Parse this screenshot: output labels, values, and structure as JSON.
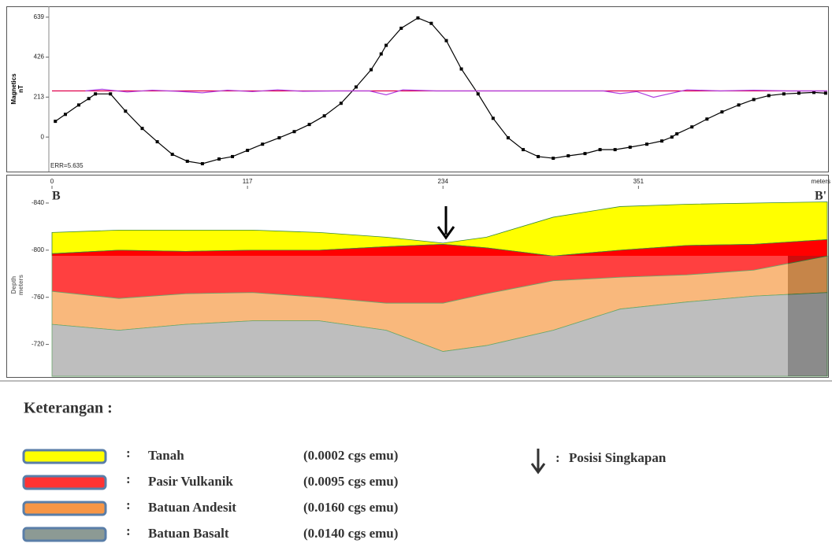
{
  "chart_data": [
    {
      "type": "line",
      "y_label": "Magnetics",
      "y_unit": "nT",
      "x_unit": "meters",
      "annotation": "ERR=5.635",
      "xlim": [
        0,
        464
      ],
      "xticks": [
        0,
        117,
        234,
        351
      ],
      "ylim": [
        -184,
        697
      ],
      "yticks": [
        639,
        426,
        213,
        0
      ],
      "series": [
        {
          "color": "#000000",
          "markers": true,
          "x": [
            2,
            8,
            16,
            22,
            26,
            35,
            44,
            54,
            63,
            72,
            81,
            90,
            100,
            108,
            117,
            126,
            136,
            145,
            154,
            163,
            173,
            182,
            191,
            197,
            200,
            209,
            219,
            227,
            236,
            245,
            255,
            264,
            273,
            282,
            291,
            300,
            309,
            319,
            328,
            337,
            346,
            356,
            365,
            371,
            374,
            383,
            392,
            401,
            411,
            420,
            429,
            438,
            447,
            456,
            463
          ],
          "values": [
            84,
            121,
            171,
            205,
            230,
            230,
            138,
            46,
            -25,
            -92,
            -129,
            -142,
            -117,
            -104,
            -71,
            -38,
            -4,
            29,
            67,
            113,
            180,
            267,
            359,
            443,
            489,
            580,
            635,
            606,
            514,
            363,
            230,
            100,
            -4,
            -67,
            -104,
            -113,
            -100,
            -88,
            -67,
            -67,
            -54,
            -38,
            -21,
            0,
            17,
            54,
            96,
            134,
            171,
            200,
            221,
            230,
            234,
            238,
            234
          ]
        },
        {
          "color": "#e0004c",
          "markers": false,
          "x": [
            0,
            464
          ],
          "values": [
            246,
            246
          ]
        },
        {
          "color": "#b040e0",
          "markers": false,
          "x": [
            20,
            30,
            45,
            60,
            75,
            90,
            105,
            120,
            135,
            150,
            170,
            190,
            200,
            210,
            230,
            260,
            300,
            330,
            340,
            350,
            360,
            380,
            400,
            420,
            440,
            464
          ],
          "values": [
            246,
            255,
            240,
            250,
            244,
            236,
            250,
            242,
            252,
            244,
            246,
            246,
            225,
            252,
            246,
            246,
            246,
            246,
            232,
            242,
            212,
            252,
            246,
            250,
            246,
            246
          ]
        }
      ]
    },
    {
      "type": "area",
      "y_label": "Depth",
      "y_unit": "meters",
      "y_inverted": true,
      "annotations": [
        "B",
        "B'"
      ],
      "xlim": [
        0,
        464
      ],
      "ylim": [
        -850,
        -693
      ],
      "yticks": [
        -840,
        -800,
        -760,
        -720
      ],
      "x": [
        0,
        40,
        80,
        120,
        160,
        200,
        234,
        260,
        300,
        340,
        380,
        420,
        464
      ],
      "series": [
        {
          "color": "#ffff00",
          "values": [
            -815,
            -817,
            -817,
            -817,
            -815,
            -811,
            -806,
            -811,
            -828,
            -837,
            -839,
            -840,
            -841
          ]
        },
        {
          "color": "#ff0000",
          "values": [
            -797,
            -800,
            -799,
            -800,
            -800,
            -803,
            -805,
            -802,
            -795,
            -800,
            -804,
            -805,
            -809
          ]
        },
        {
          "color": "#f7a050",
          "values": [
            -765,
            -759,
            -763,
            -764,
            -760,
            -755,
            -755,
            -763,
            -774,
            -777,
            -779,
            -783,
            -795
          ]
        },
        {
          "color": "#a8a8a8",
          "values": [
            -737,
            -732,
            -737,
            -740,
            -740,
            -732,
            -714,
            -719,
            -732,
            -750,
            -756,
            -761,
            -764
          ]
        }
      ]
    }
  ],
  "legend": {
    "title": "Keterangan :",
    "separator": ":",
    "items": [
      {
        "name": "Tanah",
        "value": "(0.0002 cgs emu)",
        "color": "#ffff00"
      },
      {
        "name": "Pasir Vulkanik",
        "value": "(0.0095 cgs emu)",
        "color": "#ff3333"
      },
      {
        "name": "Batuan Andesit",
        "value": "(0.0160 cgs emu)",
        "color": "#f79646"
      },
      {
        "name": "Batuan Basalt",
        "value": "(0.0140 cgs emu)",
        "color": "#8c9a94"
      }
    ],
    "arrow_label": "Posisi Singkapan"
  }
}
